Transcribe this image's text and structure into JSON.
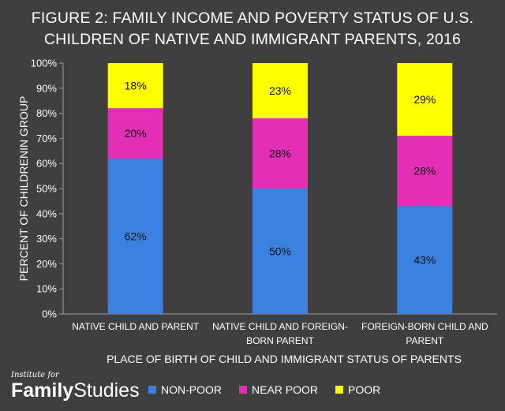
{
  "title_lines": [
    "FIGURE 2: FAMILY INCOME AND POVERTY STATUS OF U.S.",
    "CHILDREN OF NATIVE AND IMMIGRANT PARENTS, 2016"
  ],
  "chart_data": {
    "type": "bar",
    "stacked": true,
    "categories": [
      [
        "NATIVE CHILD AND PARENT"
      ],
      [
        "NATIVE CHILD AND FOREIGN-",
        "BORN PARENT"
      ],
      [
        "FOREIGN-BORN CHILD AND",
        "PARENT"
      ]
    ],
    "series": [
      {
        "name": "NON-POOR",
        "color": "#3b82e0",
        "values": [
          62,
          50,
          43
        ],
        "labels": [
          "62%",
          "50%",
          "43%"
        ]
      },
      {
        "name": "NEAR POOR",
        "color": "#e22fb5",
        "values": [
          20,
          28,
          28
        ],
        "labels": [
          "20%",
          "28%",
          "28%"
        ]
      },
      {
        "name": "POOR",
        "color": "#ffff00",
        "values": [
          18,
          23,
          29
        ],
        "labels": [
          "18%",
          "23%",
          "29%"
        ]
      }
    ],
    "xlabel": "PLACE OF BIRTH OF CHILD AND IMMIGRANT STATUS OF PARENTS",
    "ylabel": "PERCENT OF CHILDRENIN GROUP",
    "ylim": [
      0,
      100
    ],
    "yticks": [
      "0%",
      "10%",
      "20%",
      "30%",
      "40%",
      "50%",
      "60%",
      "70%",
      "80%",
      "90%",
      "100%"
    ],
    "legend_position": "bottom"
  },
  "brand": {
    "top": "Institute for",
    "name_bold": "Family",
    "name_light": "Studies"
  }
}
